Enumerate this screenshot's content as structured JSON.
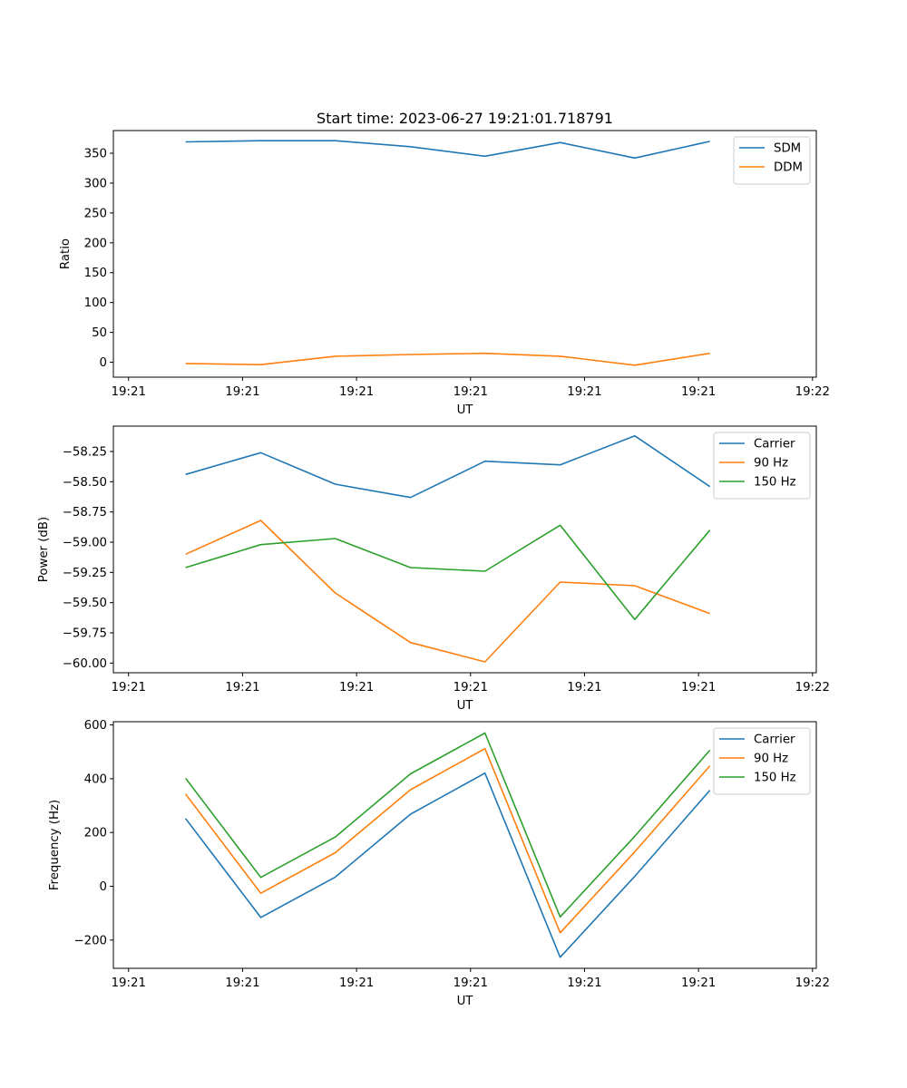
{
  "title": "Start time: 2023-06-27 19:21:01.718791",
  "chart_data": [
    {
      "type": "line",
      "ylabel": "Ratio",
      "xlabel": "UT",
      "xlim": [
        -0.2,
        9.05
      ],
      "ylim": [
        -25,
        388
      ],
      "yticks": [
        0,
        50,
        100,
        150,
        200,
        250,
        300,
        350
      ],
      "ytick_labels": [
        "0",
        "50",
        "100",
        "150",
        "200",
        "250",
        "300",
        "350"
      ],
      "xticks": [
        0,
        1.5,
        3,
        4.5,
        6,
        7.5,
        9
      ],
      "xtick_labels": [
        "19:21",
        "19:21",
        "19:21",
        "19:21",
        "19:21",
        "19:21",
        "19:22"
      ],
      "x": [
        0.75,
        1.74,
        2.72,
        3.71,
        4.69,
        5.68,
        6.66,
        7.65
      ],
      "legend_loc": "upper right",
      "series": [
        {
          "name": "SDM",
          "color": "#1f77b4",
          "values": [
            369,
            371,
            371,
            361,
            345,
            368,
            342,
            370
          ]
        },
        {
          "name": "DDM",
          "color": "#ff7f0e",
          "values": [
            -2,
            -4,
            10,
            13,
            15,
            10,
            -5,
            15
          ]
        }
      ]
    },
    {
      "type": "line",
      "ylabel": "Power (dB)",
      "xlabel": "UT",
      "xlim": [
        -0.2,
        9.05
      ],
      "ylim": [
        -60.08,
        -58.04
      ],
      "yticks": [
        -60.0,
        -59.75,
        -59.5,
        -59.25,
        -59.0,
        -58.75,
        -58.5,
        -58.25
      ],
      "ytick_labels": [
        "−60.00",
        "−59.75",
        "−59.50",
        "−59.25",
        "−59.00",
        "−58.75",
        "−58.50",
        "−58.25"
      ],
      "xticks": [
        0,
        1.5,
        3,
        4.5,
        6,
        7.5,
        9
      ],
      "xtick_labels": [
        "19:21",
        "19:21",
        "19:21",
        "19:21",
        "19:21",
        "19:21",
        "19:22"
      ],
      "x": [
        0.75,
        1.74,
        2.72,
        3.71,
        4.69,
        5.68,
        6.66,
        7.65
      ],
      "legend_loc": "upper right",
      "series": [
        {
          "name": "Carrier",
          "color": "#1f77b4",
          "values": [
            -58.44,
            -58.26,
            -58.52,
            -58.63,
            -58.33,
            -58.36,
            -58.12,
            -58.54
          ]
        },
        {
          "name": "90 Hz",
          "color": "#ff7f0e",
          "values": [
            -59.1,
            -58.82,
            -59.42,
            -59.83,
            -59.99,
            -59.33,
            -59.36,
            -59.59
          ]
        },
        {
          "name": "150 Hz",
          "color": "#2ca02c",
          "values": [
            -59.21,
            -59.02,
            -58.97,
            -59.21,
            -59.24,
            -58.86,
            -59.64,
            -58.9
          ]
        }
      ]
    },
    {
      "type": "line",
      "ylabel": "Frequency (Hz)",
      "xlabel": "UT",
      "xlim": [
        -0.2,
        9.05
      ],
      "ylim": [
        -305,
        612
      ],
      "yticks": [
        -200,
        0,
        200,
        400,
        600
      ],
      "ytick_labels": [
        "−200",
        "0",
        "200",
        "400",
        "600"
      ],
      "xticks": [
        0,
        1.5,
        3,
        4.5,
        6,
        7.5,
        9
      ],
      "xtick_labels": [
        "19:21",
        "19:21",
        "19:21",
        "19:21",
        "19:21",
        "19:21",
        "19:22"
      ],
      "x": [
        0.75,
        1.74,
        2.72,
        3.71,
        4.69,
        5.68,
        6.66,
        7.65
      ],
      "legend_loc": "upper right",
      "series": [
        {
          "name": "Carrier",
          "color": "#1f77b4",
          "values": [
            252,
            -116,
            34,
            268,
            421,
            -264,
            37,
            357
          ]
        },
        {
          "name": "90 Hz",
          "color": "#ff7f0e",
          "values": [
            343,
            -26,
            125,
            359,
            512,
            -173,
            128,
            448
          ]
        },
        {
          "name": "150 Hz",
          "color": "#2ca02c",
          "values": [
            402,
            33,
            183,
            418,
            570,
            -114,
            186,
            506
          ]
        }
      ]
    }
  ]
}
